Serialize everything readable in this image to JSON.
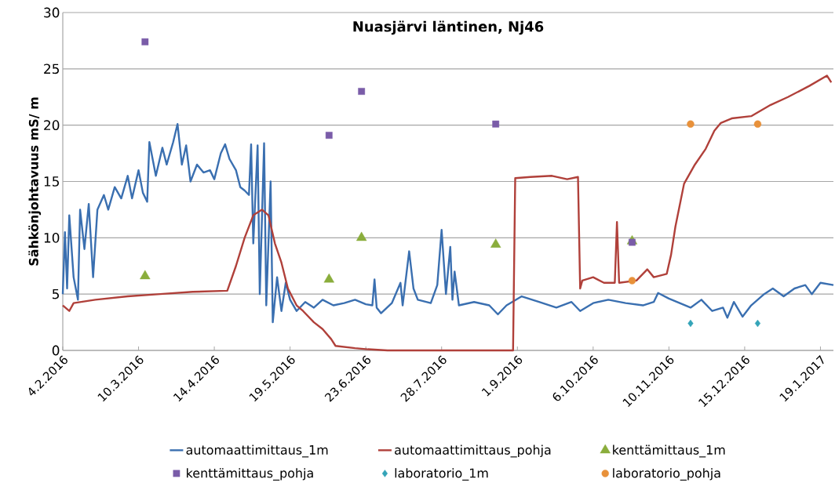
{
  "chart_data": {
    "type": "line",
    "title": "Nuasjärvi läntinen, Nj46",
    "ylabel": "Sähkönjohtavuus mS/ m",
    "xlim": [
      "2016-02-04",
      "2017-01-25"
    ],
    "ylim": [
      0,
      30
    ],
    "yticks": [
      0,
      5,
      10,
      15,
      20,
      25,
      30
    ],
    "xticks": [
      {
        "value": "2016-02-04",
        "label": "4.2.2016"
      },
      {
        "value": "2016-03-10",
        "label": "10.3.2016"
      },
      {
        "value": "2016-04-14",
        "label": "14.4.2016"
      },
      {
        "value": "2016-05-19",
        "label": "19.5.2016"
      },
      {
        "value": "2016-06-23",
        "label": "23.6.2016"
      },
      {
        "value": "2016-07-28",
        "label": "28.7.2016"
      },
      {
        "value": "2016-09-01",
        "label": "1.9.2016"
      },
      {
        "value": "2016-10-06",
        "label": "6.10.2016"
      },
      {
        "value": "2016-11-10",
        "label": "10.11.2016"
      },
      {
        "value": "2016-12-15",
        "label": "15.12.2016"
      },
      {
        "value": "2017-01-19",
        "label": "19.1.2017"
      }
    ],
    "grid": "y",
    "legend": "bottom",
    "line_style": "solid",
    "series": [
      {
        "name": "automaattimittaus_1m",
        "marker": "none",
        "color": "#3a6fb0",
        "x": [
          "2016-02-04",
          "2016-02-05",
          "2016-02-06",
          "2016-02-07",
          "2016-02-09",
          "2016-02-11",
          "2016-02-12",
          "2016-02-14",
          "2016-02-16",
          "2016-02-18",
          "2016-02-20",
          "2016-02-23",
          "2016-02-25",
          "2016-02-28",
          "2016-03-02",
          "2016-03-05",
          "2016-03-07",
          "2016-03-10",
          "2016-03-12",
          "2016-03-14",
          "2016-03-15",
          "2016-03-18",
          "2016-03-21",
          "2016-03-23",
          "2016-03-26",
          "2016-03-28",
          "2016-03-30",
          "2016-04-01",
          "2016-04-03",
          "2016-04-06",
          "2016-04-09",
          "2016-04-12",
          "2016-04-14",
          "2016-04-17",
          "2016-04-19",
          "2016-04-21",
          "2016-04-24",
          "2016-04-26",
          "2016-04-28",
          "2016-04-30",
          "2016-05-01",
          "2016-05-02",
          "2016-05-04",
          "2016-05-05",
          "2016-05-07",
          "2016-05-08",
          "2016-05-10",
          "2016-05-11",
          "2016-05-13",
          "2016-05-15",
          "2016-05-17",
          "2016-05-19",
          "2016-05-22",
          "2016-05-26",
          "2016-05-30",
          "2016-06-03",
          "2016-06-08",
          "2016-06-13",
          "2016-06-18",
          "2016-06-23",
          "2016-06-26",
          "2016-06-27",
          "2016-06-28",
          "2016-06-30",
          "2016-07-05",
          "2016-07-09",
          "2016-07-10",
          "2016-07-13",
          "2016-07-15",
          "2016-07-17",
          "2016-07-23",
          "2016-07-26",
          "2016-07-28",
          "2016-07-30",
          "2016-08-01",
          "2016-08-02",
          "2016-08-03",
          "2016-08-05",
          "2016-08-12",
          "2016-08-19",
          "2016-08-23",
          "2016-08-27",
          "2016-09-03",
          "2016-09-11",
          "2016-09-19",
          "2016-09-26",
          "2016-09-30",
          "2016-10-06",
          "2016-10-13",
          "2016-10-21",
          "2016-10-29",
          "2016-11-03",
          "2016-11-05",
          "2016-11-10",
          "2016-11-15",
          "2016-11-20",
          "2016-11-25",
          "2016-11-30",
          "2016-12-05",
          "2016-12-07",
          "2016-12-10",
          "2016-12-14",
          "2016-12-18",
          "2016-12-24",
          "2016-12-28",
          "2017-01-02",
          "2017-01-07",
          "2017-01-12",
          "2017-01-15",
          "2017-01-19",
          "2017-01-25"
        ],
        "values": [
          5,
          10.5,
          5.5,
          12,
          6.5,
          4.5,
          12.5,
          9,
          13,
          6.5,
          12.5,
          13.8,
          12.5,
          14.5,
          13.5,
          15.5,
          13.5,
          16,
          14,
          13.2,
          18.5,
          15.5,
          18,
          16.5,
          18.5,
          20.1,
          16.5,
          18.2,
          15,
          16.5,
          15.8,
          16,
          15.2,
          17.5,
          18.3,
          17,
          16,
          14.5,
          14.2,
          13.8,
          18.3,
          9.5,
          18.2,
          5,
          18.4,
          4,
          15,
          2.5,
          6.5,
          3.5,
          6,
          4.5,
          3.5,
          4.3,
          3.8,
          4.5,
          4,
          4.2,
          4.5,
          4.1,
          4.0,
          6.3,
          3.8,
          3.3,
          4.2,
          6,
          4,
          8.8,
          5.5,
          4.5,
          4.2,
          5.8,
          10.7,
          5,
          9.2,
          4.5,
          7,
          4,
          4.3,
          4,
          3.2,
          4,
          4.8,
          4.3,
          3.8,
          4.3,
          3.5,
          4.2,
          4.5,
          4.2,
          4.0,
          4.3,
          5.1,
          4.6,
          4.2,
          3.8,
          4.5,
          3.5,
          3.8,
          2.9,
          4.3,
          3.0,
          4.0,
          5.0,
          5.5,
          4.8,
          5.5,
          5.8,
          5.0,
          6.0,
          5.8
        ]
      },
      {
        "name": "automaattimittaus_pohja",
        "marker": "none",
        "color": "#b0403a",
        "x": [
          "2016-02-04",
          "2016-02-07",
          "2016-02-09",
          "2016-02-19",
          "2016-03-05",
          "2016-03-20",
          "2016-04-04",
          "2016-04-20",
          "2016-04-24",
          "2016-04-28",
          "2016-05-02",
          "2016-05-06",
          "2016-05-09",
          "2016-05-12",
          "2016-05-15",
          "2016-05-18",
          "2016-05-22",
          "2016-05-25",
          "2016-05-30",
          "2016-06-03",
          "2016-06-07",
          "2016-06-09",
          "2016-06-18",
          "2016-06-24",
          "2016-07-03",
          "2016-08-30",
          "2016-08-31",
          "2016-09-07",
          "2016-09-17",
          "2016-09-24",
          "2016-09-29",
          "2016-09-30",
          "2016-10-01",
          "2016-10-06",
          "2016-10-11",
          "2016-10-16",
          "2016-10-17",
          "2016-10-18",
          "2016-10-26",
          "2016-10-31",
          "2016-11-03",
          "2016-11-09",
          "2016-11-11",
          "2016-11-13",
          "2016-11-17",
          "2016-11-22",
          "2016-11-27",
          "2016-12-01",
          "2016-12-04",
          "2016-12-09",
          "2016-12-18",
          "2016-12-27",
          "2017-01-04",
          "2017-01-14",
          "2017-01-22",
          "2017-01-24"
        ],
        "values": [
          4.0,
          3.5,
          4.2,
          4.5,
          4.8,
          5.0,
          5.2,
          5.3,
          7.5,
          10,
          12,
          12.5,
          12.0,
          9.5,
          7.8,
          5.5,
          4,
          3.5,
          2.5,
          1.9,
          1.0,
          0.4,
          0.2,
          0.1,
          0,
          0,
          15.3,
          15.4,
          15.5,
          15.2,
          15.4,
          5.5,
          6.2,
          6.5,
          6.0,
          6.0,
          11.4,
          6.0,
          6.2,
          7.2,
          6.5,
          6.8,
          8.5,
          11,
          14.8,
          16.5,
          17.9,
          19.5,
          20.2,
          20.6,
          20.8,
          21.8,
          22.5,
          23.5,
          24.4,
          23.8
        ]
      },
      {
        "name": "kenttämittaus_1m",
        "type": "scatter",
        "marker": "triangle",
        "color": "#8aad3c",
        "x": [
          "2016-03-13",
          "2016-06-06",
          "2016-06-21",
          "2016-08-22",
          "2016-10-24"
        ],
        "values": [
          6.6,
          6.3,
          10.0,
          9.4,
          9.7
        ]
      },
      {
        "name": "kenttämittaus_pohja",
        "type": "scatter",
        "marker": "square",
        "color": "#7a5ca8",
        "x": [
          "2016-03-13",
          "2016-06-06",
          "2016-06-21",
          "2016-08-22",
          "2016-10-24"
        ],
        "values": [
          27.4,
          19.1,
          23.0,
          20.1,
          9.6
        ]
      },
      {
        "name": "laboratorio_1m",
        "type": "scatter",
        "marker": "diamond",
        "color": "#34a4b8",
        "x": [
          "2016-11-20",
          "2016-12-21"
        ],
        "values": [
          2.4,
          2.4
        ]
      },
      {
        "name": "laboratorio_pohja",
        "type": "scatter",
        "marker": "circle",
        "color": "#e8913a",
        "x": [
          "2016-10-24",
          "2016-11-20",
          "2016-12-21"
        ],
        "values": [
          6.2,
          20.1,
          20.1
        ]
      }
    ]
  }
}
